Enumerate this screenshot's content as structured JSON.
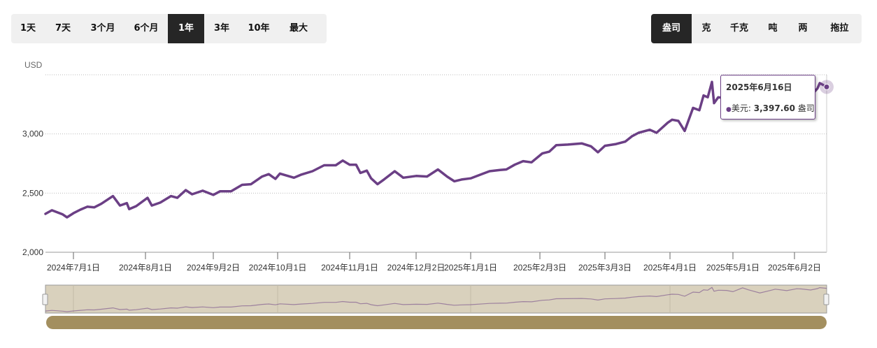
{
  "range_buttons": [
    {
      "label": "1天",
      "active": false
    },
    {
      "label": "7天",
      "active": false
    },
    {
      "label": "3个月",
      "active": false
    },
    {
      "label": "6个月",
      "active": false
    },
    {
      "label": "1年",
      "active": true
    },
    {
      "label": "3年",
      "active": false
    },
    {
      "label": "10年",
      "active": false
    },
    {
      "label": "最大",
      "active": false
    }
  ],
  "unit_buttons": [
    {
      "label": "盎司",
      "active": true
    },
    {
      "label": "克",
      "active": false
    },
    {
      "label": "千克",
      "active": false
    },
    {
      "label": "吨",
      "active": false
    },
    {
      "label": "两",
      "active": false
    },
    {
      "label": "拖拉",
      "active": false
    }
  ],
  "tooltip": {
    "date": "2025年6月16日",
    "series": "美元",
    "value": "3,397.60",
    "unit": "盎司"
  },
  "colors": {
    "line": "#6b3f85",
    "navigator_bg": "#d9d1bd",
    "scrollbar": "#a38f5f",
    "active_button": "#262626"
  },
  "chart_data": {
    "type": "line",
    "ylabel": "USD",
    "ylim": [
      2000,
      3500
    ],
    "yticks": [
      2000,
      2500,
      3000
    ],
    "ytick_labels": [
      "2,000",
      "2,500",
      "3,000"
    ],
    "grid": true,
    "xticks": [
      "2024-07-01",
      "2024-08-01",
      "2024-09-02",
      "2024-10-01",
      "2024-11-01",
      "2024-12-02",
      "2025-01-01",
      "2025-02-03",
      "2025-03-03",
      "2025-04-01",
      "2025-05-01",
      "2025-06-02"
    ],
    "xtick_labels": [
      "2024年7月1日",
      "2024年8月1日",
      "2024年9月2日",
      "2024年10月1日",
      "2024年11月1日",
      "2024年12月2日",
      "2025年1月1日",
      "2025年2月3日",
      "2025年3月3日",
      "2025年4月1日",
      "2025年5月1日",
      "2025年6月2日"
    ],
    "x_range": [
      "2024-06-18",
      "2025-06-16"
    ],
    "series": [
      {
        "values": [
          [
            "2024-06-18",
            2325
          ],
          [
            "2024-06-21",
            2355
          ],
          [
            "2024-06-26",
            2320
          ],
          [
            "2024-06-28",
            2295
          ],
          [
            "2024-07-01",
            2330
          ],
          [
            "2024-07-04",
            2360
          ],
          [
            "2024-07-07",
            2385
          ],
          [
            "2024-07-10",
            2380
          ],
          [
            "2024-07-13",
            2410
          ],
          [
            "2024-07-18",
            2475
          ],
          [
            "2024-07-21",
            2395
          ],
          [
            "2024-07-24",
            2415
          ],
          [
            "2024-07-25",
            2365
          ],
          [
            "2024-07-28",
            2390
          ],
          [
            "2024-08-02",
            2460
          ],
          [
            "2024-08-04",
            2395
          ],
          [
            "2024-08-08",
            2420
          ],
          [
            "2024-08-13",
            2475
          ],
          [
            "2024-08-16",
            2460
          ],
          [
            "2024-08-20",
            2525
          ],
          [
            "2024-08-23",
            2490
          ],
          [
            "2024-08-28",
            2520
          ],
          [
            "2024-09-02",
            2485
          ],
          [
            "2024-09-05",
            2515
          ],
          [
            "2024-09-10",
            2515
          ],
          [
            "2024-09-15",
            2570
          ],
          [
            "2024-09-19",
            2575
          ],
          [
            "2024-09-24",
            2640
          ],
          [
            "2024-09-27",
            2660
          ],
          [
            "2024-09-30",
            2620
          ],
          [
            "2024-10-02",
            2665
          ],
          [
            "2024-10-08",
            2630
          ],
          [
            "2024-10-11",
            2655
          ],
          [
            "2024-10-16",
            2685
          ],
          [
            "2024-10-21",
            2735
          ],
          [
            "2024-10-26",
            2735
          ],
          [
            "2024-10-29",
            2775
          ],
          [
            "2024-11-01",
            2740
          ],
          [
            "2024-11-04",
            2740
          ],
          [
            "2024-11-06",
            2670
          ],
          [
            "2024-11-09",
            2690
          ],
          [
            "2024-11-11",
            2625
          ],
          [
            "2024-11-14",
            2575
          ],
          [
            "2024-11-17",
            2615
          ],
          [
            "2024-11-22",
            2685
          ],
          [
            "2024-11-26",
            2630
          ],
          [
            "2024-12-02",
            2645
          ],
          [
            "2024-12-08",
            2640
          ],
          [
            "2024-12-14",
            2700
          ],
          [
            "2024-12-19",
            2640
          ],
          [
            "2024-12-23",
            2600
          ],
          [
            "2024-12-27",
            2615
          ],
          [
            "2025-01-01",
            2625
          ],
          [
            "2025-01-07",
            2665
          ],
          [
            "2025-01-10",
            2685
          ],
          [
            "2025-01-15",
            2695
          ],
          [
            "2025-01-18",
            2700
          ],
          [
            "2025-01-22",
            2740
          ],
          [
            "2025-01-26",
            2770
          ],
          [
            "2025-01-30",
            2760
          ],
          [
            "2025-02-04",
            2835
          ],
          [
            "2025-02-07",
            2850
          ],
          [
            "2025-02-10",
            2905
          ],
          [
            "2025-02-15",
            2910
          ],
          [
            "2025-02-21",
            2920
          ],
          [
            "2025-02-25",
            2895
          ],
          [
            "2025-02-28",
            2845
          ],
          [
            "2025-03-03",
            2900
          ],
          [
            "2025-03-08",
            2915
          ],
          [
            "2025-03-12",
            2935
          ],
          [
            "2025-03-15",
            2980
          ],
          [
            "2025-03-18",
            3010
          ],
          [
            "2025-03-23",
            3035
          ],
          [
            "2025-03-26",
            3010
          ],
          [
            "2025-03-31",
            3095
          ],
          [
            "2025-04-02",
            3120
          ],
          [
            "2025-04-05",
            3110
          ],
          [
            "2025-04-08",
            3025
          ],
          [
            "2025-04-12",
            3220
          ],
          [
            "2025-04-15",
            3200
          ],
          [
            "2025-04-17",
            3325
          ],
          [
            "2025-04-19",
            3310
          ],
          [
            "2025-04-21",
            3440
          ],
          [
            "2025-04-22",
            3260
          ],
          [
            "2025-04-24",
            3310
          ],
          [
            "2025-04-28",
            3300
          ],
          [
            "2025-05-01",
            3240
          ],
          [
            "2025-05-06",
            3420
          ],
          [
            "2025-05-09",
            3330
          ],
          [
            "2025-05-15",
            3180
          ],
          [
            "2025-05-20",
            3290
          ],
          [
            "2025-05-23",
            3360
          ],
          [
            "2025-05-29",
            3290
          ],
          [
            "2025-06-03",
            3380
          ],
          [
            "2025-06-05",
            3370
          ],
          [
            "2025-06-09",
            3320
          ],
          [
            "2025-06-12",
            3385
          ],
          [
            "2025-06-13",
            3430
          ],
          [
            "2025-06-16",
            3397.6
          ]
        ]
      }
    ]
  }
}
